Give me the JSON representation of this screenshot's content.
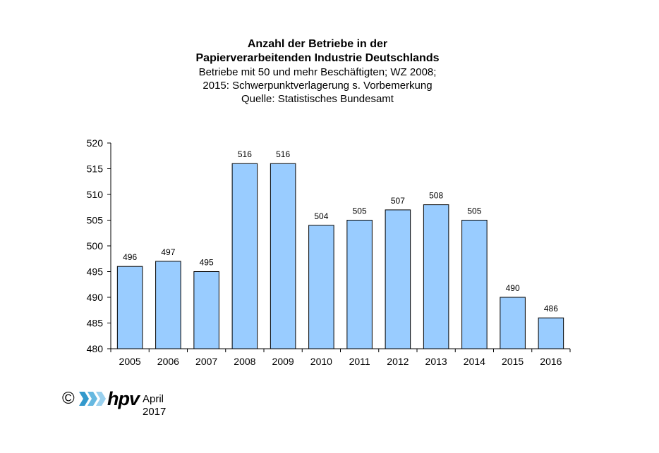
{
  "chart_data": {
    "type": "bar",
    "title": "Anzahl der Betriebe in der",
    "title_line2": "Papierverarbeitenden Industrie Deutschlands",
    "subtitle_lines": [
      "Betriebe mit 50 und mehr Beschäftigten; WZ 2008;",
      "2015: Schwerpunktverlagerung  s. Vorbemerkung",
      "Quelle:  Statistisches  Bundesamt"
    ],
    "categories": [
      "2005",
      "2006",
      "2007",
      "2008",
      "2009",
      "2010",
      "2011",
      "2012",
      "2013",
      "2014",
      "2015",
      "2016"
    ],
    "values": [
      496,
      497,
      495,
      516,
      516,
      504,
      505,
      507,
      508,
      505,
      490,
      486
    ],
    "data_labels": [
      "496",
      "497",
      "495",
      "516",
      "516",
      "504",
      "505",
      "507",
      "508",
      "505",
      "490",
      "486"
    ],
    "ylim": [
      480,
      520
    ],
    "yticks": [
      480,
      485,
      490,
      495,
      500,
      505,
      510,
      515,
      520
    ],
    "bar_color": "#99ccff",
    "grid": false,
    "legend": "none",
    "xlabel": "",
    "ylabel": ""
  },
  "footer": {
    "copyright": "©",
    "logo_text": "hpv",
    "date": "April 2017"
  }
}
